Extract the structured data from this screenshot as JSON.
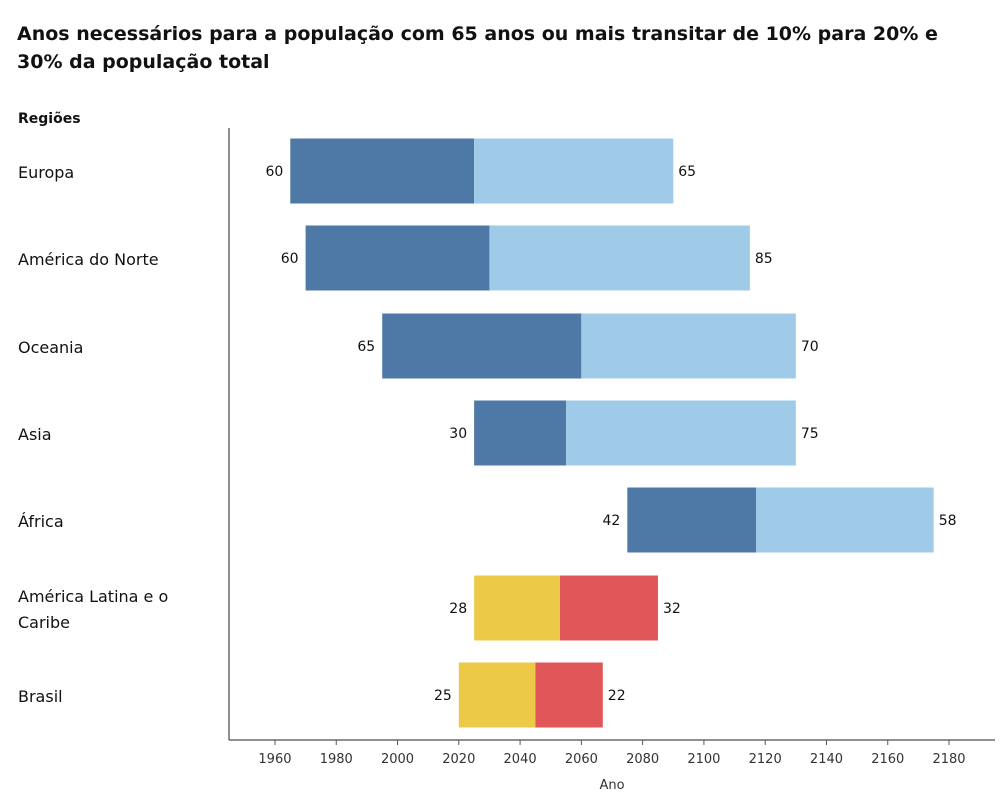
{
  "chart_data": {
    "type": "bar",
    "orientation": "horizontal-floating",
    "title": "Anos necessários para a população com 65 anos ou mais transitar de 10% para 20% e 30% da população total",
    "row_header": "Regiões",
    "xlabel": "Ano",
    "xlim": [
      1945,
      2195
    ],
    "xticks": [
      1960,
      1980,
      2000,
      2020,
      2040,
      2060,
      2080,
      2100,
      2120,
      2140,
      2160,
      2180
    ],
    "grid": false,
    "rows": [
      {
        "label": "Europa",
        "start": 1965,
        "years_10_to_20": 60,
        "years_20_to_30": 65,
        "palette": "blue"
      },
      {
        "label": "América do Norte",
        "start": 1970,
        "years_10_to_20": 60,
        "years_20_to_30": 85,
        "palette": "blue"
      },
      {
        "label": "Oceania",
        "start": 1995,
        "years_10_to_20": 65,
        "years_20_to_30": 70,
        "palette": "blue"
      },
      {
        "label": "Asia",
        "start": 2025,
        "years_10_to_20": 30,
        "years_20_to_30": 75,
        "palette": "blue"
      },
      {
        "label": "África",
        "start": 2075,
        "years_10_to_20": 42,
        "years_20_to_30": 58,
        "palette": "blue"
      },
      {
        "label": "América Latina e o Caribe",
        "start": 2025,
        "years_10_to_20": 28,
        "years_20_to_30": 32,
        "palette": "warm"
      },
      {
        "label": "Brasil",
        "start": 2020,
        "years_10_to_20": 25,
        "years_20_to_30": 22,
        "palette": "warm"
      }
    ],
    "colors": {
      "blue": [
        "#4e79a7",
        "#a0cbe8"
      ],
      "warm": [
        "#edc948",
        "#e15759"
      ]
    }
  }
}
